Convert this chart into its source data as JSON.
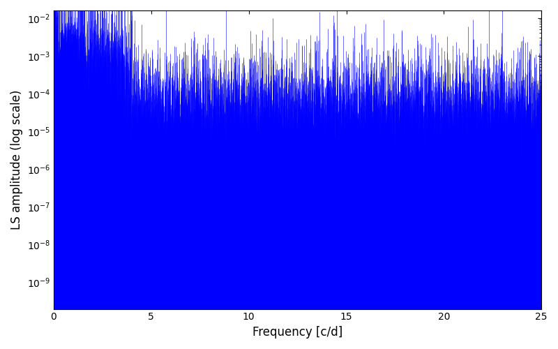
{
  "xlabel": "Frequency [c/d]",
  "ylabel": "LS amplitude (log scale)",
  "xlim": [
    0,
    25
  ],
  "ylim_log_min": -9.7,
  "ylim_log_max": -1.8,
  "line_color": "#0000FF",
  "background_color": "#ffffff",
  "figsize": [
    8.0,
    5.0
  ],
  "dpi": 100,
  "seed": 12345,
  "n_points": 8000,
  "freq_max": 25.0
}
